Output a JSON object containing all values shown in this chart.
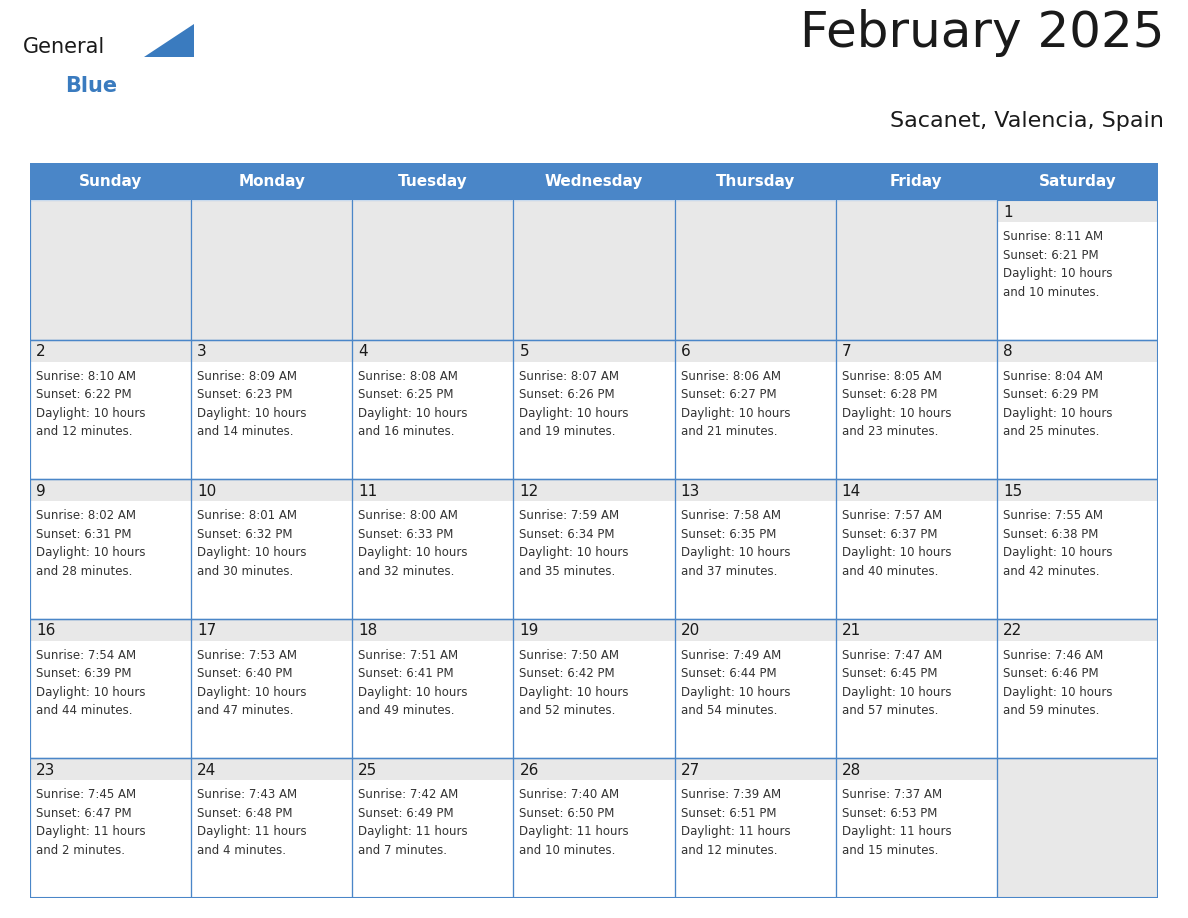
{
  "title": "February 2025",
  "subtitle": "Sacanet, Valencia, Spain",
  "days_of_week": [
    "Sunday",
    "Monday",
    "Tuesday",
    "Wednesday",
    "Thursday",
    "Friday",
    "Saturday"
  ],
  "header_bg": "#4a86c8",
  "header_text": "#ffffff",
  "cell_bg": "#ffffff",
  "day_strip_bg": "#e8e8e8",
  "border_color": "#4a86c8",
  "day_number_color": "#1a1a1a",
  "cell_text_color": "#333333",
  "title_color": "#1a1a1a",
  "subtitle_color": "#1a1a1a",
  "logo_general_color": "#1a1a1a",
  "logo_blue_color": "#3a7bbf",
  "weeks": [
    [
      {
        "day": null,
        "info": ""
      },
      {
        "day": null,
        "info": ""
      },
      {
        "day": null,
        "info": ""
      },
      {
        "day": null,
        "info": ""
      },
      {
        "day": null,
        "info": ""
      },
      {
        "day": null,
        "info": ""
      },
      {
        "day": 1,
        "info": "Sunrise: 8:11 AM\nSunset: 6:21 PM\nDaylight: 10 hours\nand 10 minutes."
      }
    ],
    [
      {
        "day": 2,
        "info": "Sunrise: 8:10 AM\nSunset: 6:22 PM\nDaylight: 10 hours\nand 12 minutes."
      },
      {
        "day": 3,
        "info": "Sunrise: 8:09 AM\nSunset: 6:23 PM\nDaylight: 10 hours\nand 14 minutes."
      },
      {
        "day": 4,
        "info": "Sunrise: 8:08 AM\nSunset: 6:25 PM\nDaylight: 10 hours\nand 16 minutes."
      },
      {
        "day": 5,
        "info": "Sunrise: 8:07 AM\nSunset: 6:26 PM\nDaylight: 10 hours\nand 19 minutes."
      },
      {
        "day": 6,
        "info": "Sunrise: 8:06 AM\nSunset: 6:27 PM\nDaylight: 10 hours\nand 21 minutes."
      },
      {
        "day": 7,
        "info": "Sunrise: 8:05 AM\nSunset: 6:28 PM\nDaylight: 10 hours\nand 23 minutes."
      },
      {
        "day": 8,
        "info": "Sunrise: 8:04 AM\nSunset: 6:29 PM\nDaylight: 10 hours\nand 25 minutes."
      }
    ],
    [
      {
        "day": 9,
        "info": "Sunrise: 8:02 AM\nSunset: 6:31 PM\nDaylight: 10 hours\nand 28 minutes."
      },
      {
        "day": 10,
        "info": "Sunrise: 8:01 AM\nSunset: 6:32 PM\nDaylight: 10 hours\nand 30 minutes."
      },
      {
        "day": 11,
        "info": "Sunrise: 8:00 AM\nSunset: 6:33 PM\nDaylight: 10 hours\nand 32 minutes."
      },
      {
        "day": 12,
        "info": "Sunrise: 7:59 AM\nSunset: 6:34 PM\nDaylight: 10 hours\nand 35 minutes."
      },
      {
        "day": 13,
        "info": "Sunrise: 7:58 AM\nSunset: 6:35 PM\nDaylight: 10 hours\nand 37 minutes."
      },
      {
        "day": 14,
        "info": "Sunrise: 7:57 AM\nSunset: 6:37 PM\nDaylight: 10 hours\nand 40 minutes."
      },
      {
        "day": 15,
        "info": "Sunrise: 7:55 AM\nSunset: 6:38 PM\nDaylight: 10 hours\nand 42 minutes."
      }
    ],
    [
      {
        "day": 16,
        "info": "Sunrise: 7:54 AM\nSunset: 6:39 PM\nDaylight: 10 hours\nand 44 minutes."
      },
      {
        "day": 17,
        "info": "Sunrise: 7:53 AM\nSunset: 6:40 PM\nDaylight: 10 hours\nand 47 minutes."
      },
      {
        "day": 18,
        "info": "Sunrise: 7:51 AM\nSunset: 6:41 PM\nDaylight: 10 hours\nand 49 minutes."
      },
      {
        "day": 19,
        "info": "Sunrise: 7:50 AM\nSunset: 6:42 PM\nDaylight: 10 hours\nand 52 minutes."
      },
      {
        "day": 20,
        "info": "Sunrise: 7:49 AM\nSunset: 6:44 PM\nDaylight: 10 hours\nand 54 minutes."
      },
      {
        "day": 21,
        "info": "Sunrise: 7:47 AM\nSunset: 6:45 PM\nDaylight: 10 hours\nand 57 minutes."
      },
      {
        "day": 22,
        "info": "Sunrise: 7:46 AM\nSunset: 6:46 PM\nDaylight: 10 hours\nand 59 minutes."
      }
    ],
    [
      {
        "day": 23,
        "info": "Sunrise: 7:45 AM\nSunset: 6:47 PM\nDaylight: 11 hours\nand 2 minutes."
      },
      {
        "day": 24,
        "info": "Sunrise: 7:43 AM\nSunset: 6:48 PM\nDaylight: 11 hours\nand 4 minutes."
      },
      {
        "day": 25,
        "info": "Sunrise: 7:42 AM\nSunset: 6:49 PM\nDaylight: 11 hours\nand 7 minutes."
      },
      {
        "day": 26,
        "info": "Sunrise: 7:40 AM\nSunset: 6:50 PM\nDaylight: 11 hours\nand 10 minutes."
      },
      {
        "day": 27,
        "info": "Sunrise: 7:39 AM\nSunset: 6:51 PM\nDaylight: 11 hours\nand 12 minutes."
      },
      {
        "day": 28,
        "info": "Sunrise: 7:37 AM\nSunset: 6:53 PM\nDaylight: 11 hours\nand 15 minutes."
      },
      {
        "day": null,
        "info": ""
      }
    ]
  ]
}
